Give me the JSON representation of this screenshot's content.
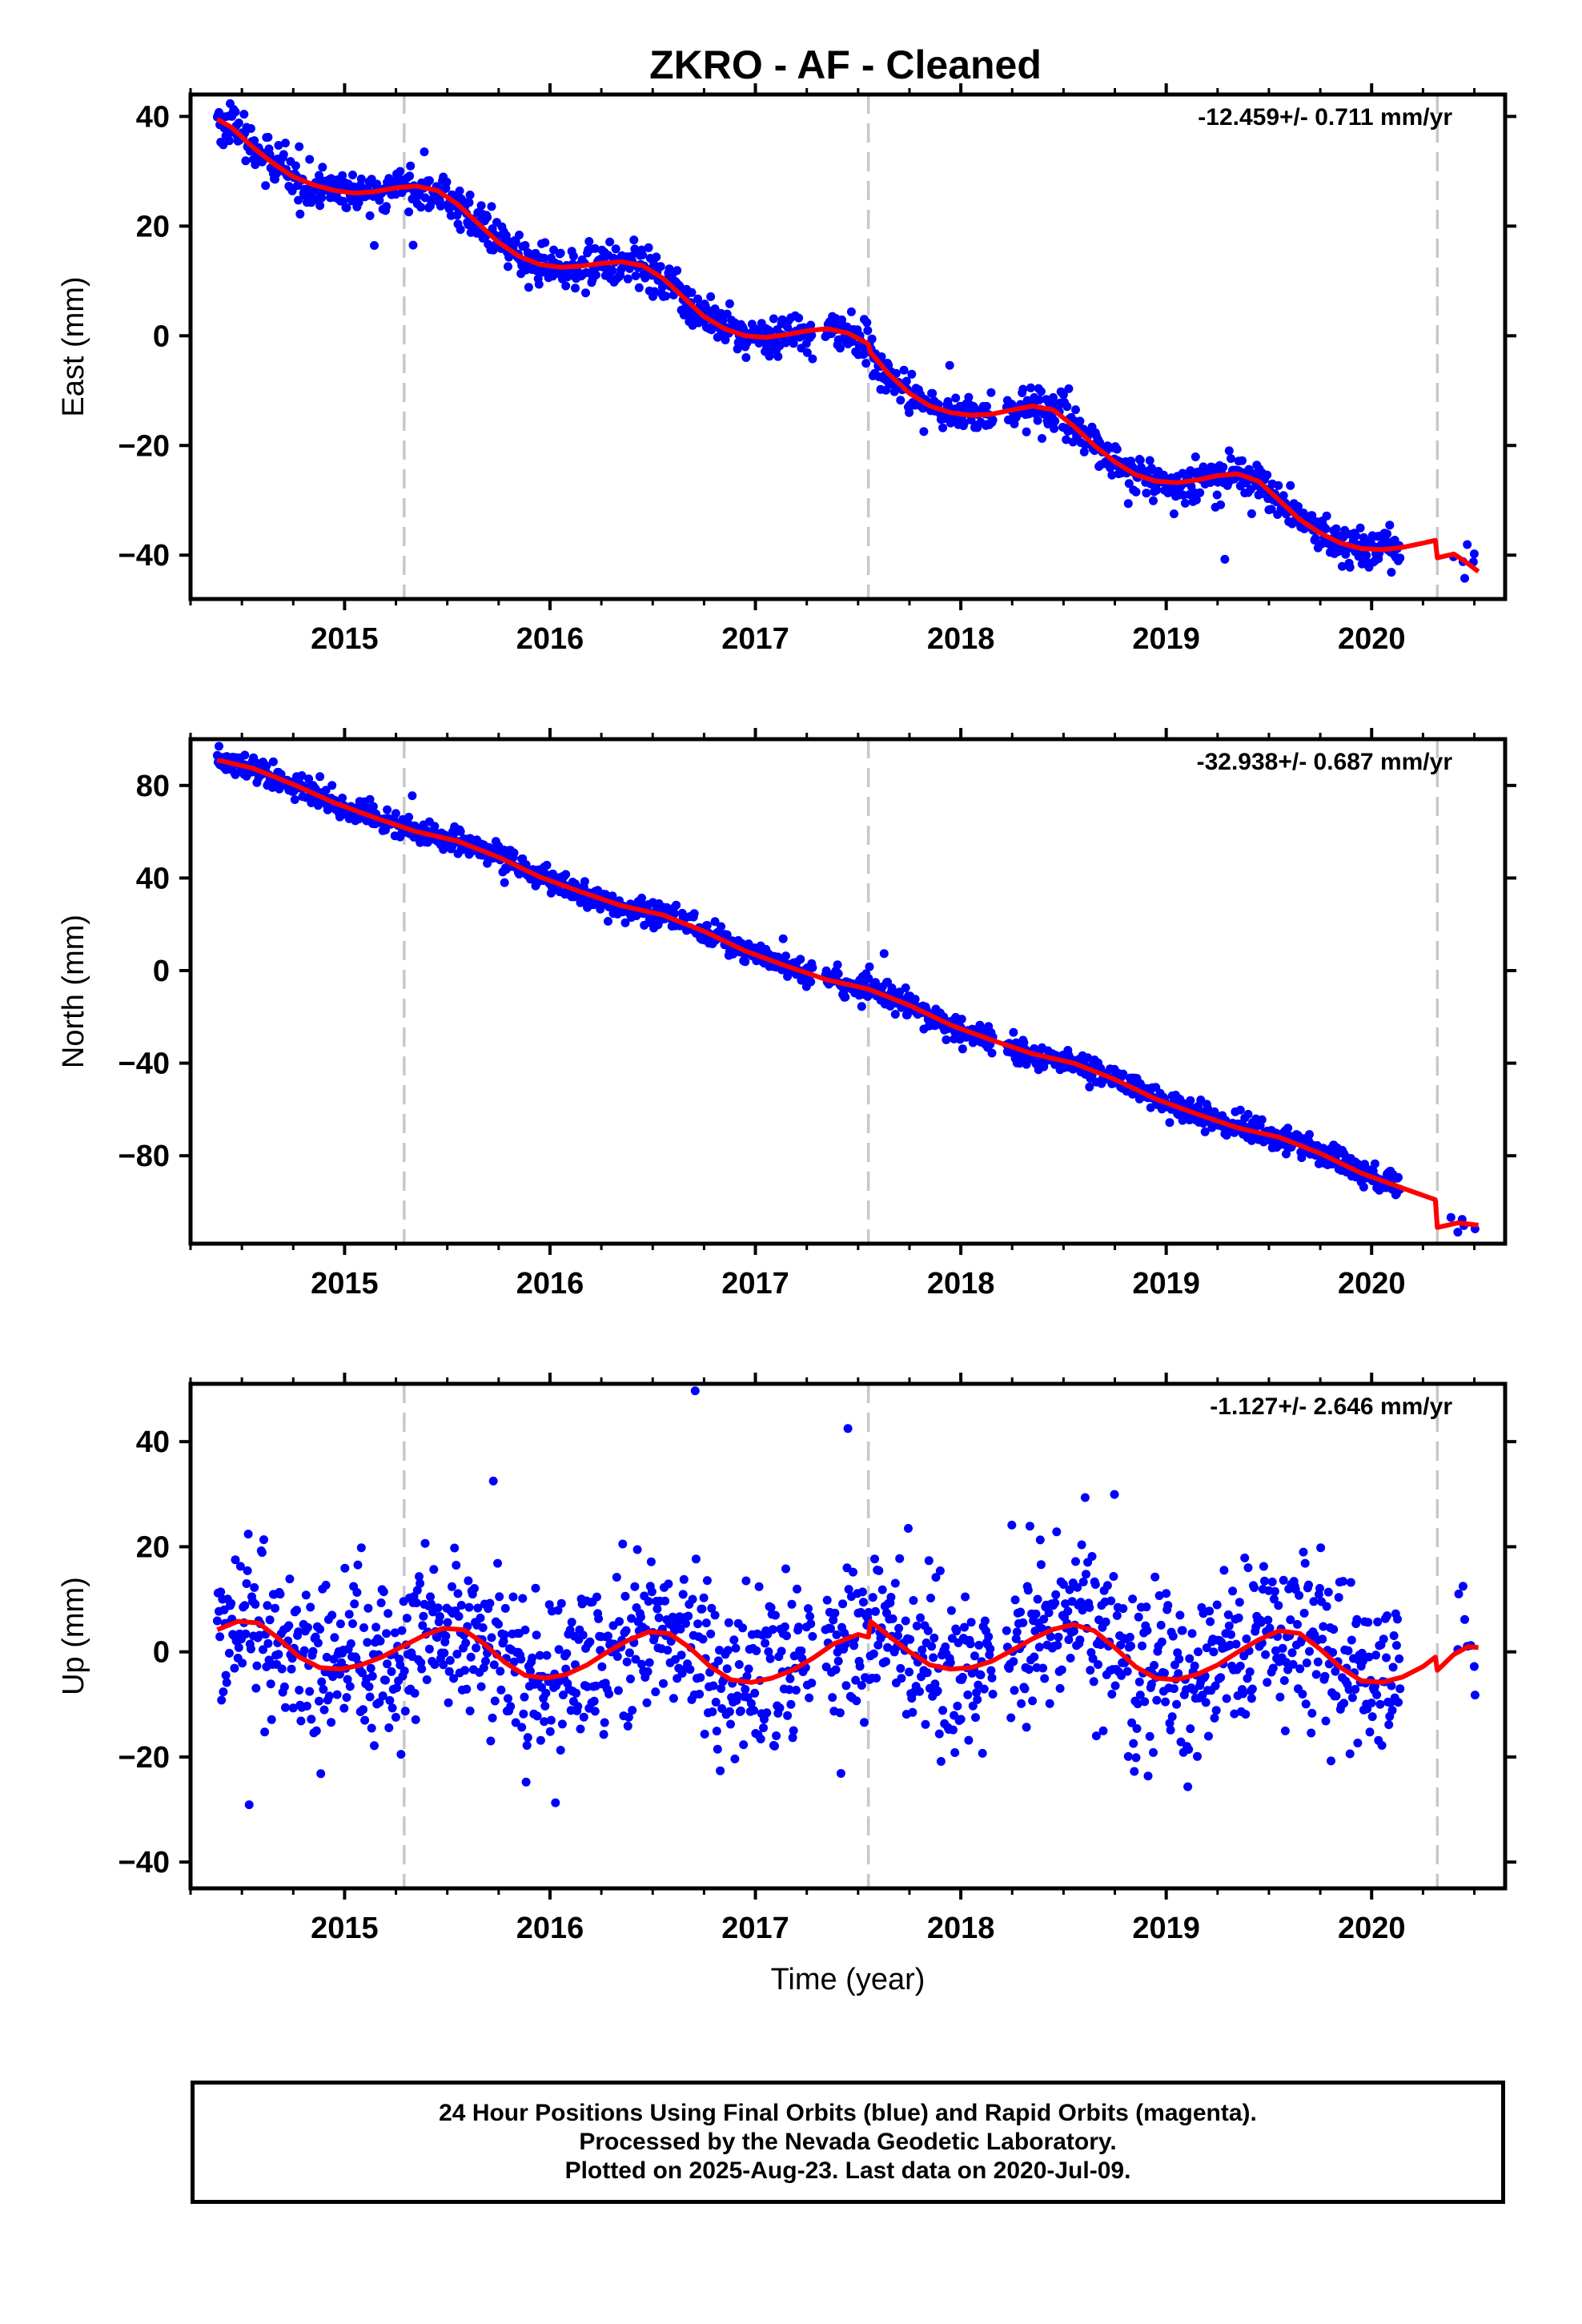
{
  "title": "ZKRO  - AF - Cleaned",
  "caption": {
    "line1": "24 Hour Positions Using Final Orbits (blue) and Rapid Orbits (magenta).",
    "line2": "Processed by the Nevada Geodetic Laboratory.",
    "line3": "Plotted on 2025-Aug-23. Last data on 2020-Jul-09."
  },
  "colors": {
    "points": "#0000ff",
    "model": "#ff0000",
    "equipment_change": "#c8c8c8"
  },
  "chart_data": [
    {
      "type": "scatter",
      "ylabel": "East (mm)",
      "xlabel": "",
      "rate_label": "-12.459+/- 0.711 mm/yr",
      "xlim": [
        2014.25,
        2020.65
      ],
      "ylim": [
        -48,
        44
      ],
      "xticks": [
        "2015",
        "2016",
        "2017",
        "2018",
        "2019",
        "2020"
      ],
      "yticks": [
        {
          "v": 40,
          "label": "40"
        },
        {
          "v": 20,
          "label": "20"
        },
        {
          "v": 0,
          "label": "0"
        },
        {
          "v": -20,
          "label": "−20"
        },
        {
          "v": -40,
          "label": "−40"
        }
      ],
      "equipment_changes": [
        2015.29,
        2017.55,
        2020.32
      ],
      "model_line": [
        [
          2014.38,
          39.5
        ],
        [
          2014.45,
          38.0
        ],
        [
          2014.55,
          34.5
        ],
        [
          2014.65,
          31.5
        ],
        [
          2014.75,
          29.0
        ],
        [
          2014.85,
          27.5
        ],
        [
          2014.95,
          26.5
        ],
        [
          2015.05,
          26.0
        ],
        [
          2015.15,
          26.3
        ],
        [
          2015.25,
          27.0
        ],
        [
          2015.35,
          27.3
        ],
        [
          2015.45,
          26.5
        ],
        [
          2015.55,
          24.0
        ],
        [
          2015.65,
          20.5
        ],
        [
          2015.75,
          17.0
        ],
        [
          2015.85,
          14.5
        ],
        [
          2015.95,
          13.0
        ],
        [
          2016.05,
          12.5
        ],
        [
          2016.15,
          12.7
        ],
        [
          2016.25,
          13.2
        ],
        [
          2016.35,
          13.5
        ],
        [
          2016.45,
          12.8
        ],
        [
          2016.55,
          10.5
        ],
        [
          2016.65,
          7.0
        ],
        [
          2016.75,
          3.5
        ],
        [
          2016.85,
          1.3
        ],
        [
          2016.95,
          0.0
        ],
        [
          2017.05,
          -0.3
        ],
        [
          2017.15,
          0.2
        ],
        [
          2017.25,
          0.9
        ],
        [
          2017.35,
          1.3
        ],
        [
          2017.45,
          0.5
        ],
        [
          2017.55,
          -1.5
        ],
        [
          2017.56,
          -3.0
        ],
        [
          2017.65,
          -7.0
        ],
        [
          2017.75,
          -10.5
        ],
        [
          2017.85,
          -12.8
        ],
        [
          2017.95,
          -14.0
        ],
        [
          2018.05,
          -14.5
        ],
        [
          2018.15,
          -14.3
        ],
        [
          2018.25,
          -13.5
        ],
        [
          2018.35,
          -12.8
        ],
        [
          2018.45,
          -13.5
        ],
        [
          2018.55,
          -16.5
        ],
        [
          2018.65,
          -20.0
        ],
        [
          2018.75,
          -23.0
        ],
        [
          2018.85,
          -25.3
        ],
        [
          2018.95,
          -26.5
        ],
        [
          2019.05,
          -26.8
        ],
        [
          2019.15,
          -26.3
        ],
        [
          2019.25,
          -25.5
        ],
        [
          2019.35,
          -25.2
        ],
        [
          2019.45,
          -26.5
        ],
        [
          2019.55,
          -30.0
        ],
        [
          2019.65,
          -33.5
        ],
        [
          2019.75,
          -36.0
        ],
        [
          2019.85,
          -37.8
        ],
        [
          2019.95,
          -38.8
        ],
        [
          2020.05,
          -39.0
        ],
        [
          2020.15,
          -38.6
        ],
        [
          2020.25,
          -37.8
        ],
        [
          2020.31,
          -37.3
        ],
        [
          2020.32,
          -40.5
        ],
        [
          2020.4,
          -39.8
        ],
        [
          2020.45,
          -41.0
        ],
        [
          2020.52,
          -43.0
        ]
      ]
    },
    {
      "type": "scatter",
      "ylabel": "North (mm)",
      "xlabel": "",
      "rate_label": "-32.938+/- 0.687 mm/yr",
      "xlim": [
        2014.25,
        2020.65
      ],
      "ylim": [
        -118,
        100
      ],
      "xticks": [
        "2015",
        "2016",
        "2017",
        "2018",
        "2019",
        "2020"
      ],
      "yticks": [
        {
          "v": 80,
          "label": "80"
        },
        {
          "v": 40,
          "label": "40"
        },
        {
          "v": 0,
          "label": "0"
        },
        {
          "v": -40,
          "label": "−40"
        },
        {
          "v": -80,
          "label": "−80"
        }
      ],
      "equipment_changes": [
        2015.29,
        2017.55,
        2020.32
      ],
      "model_line": [
        [
          2014.38,
          91.0
        ],
        [
          2014.55,
          87.5
        ],
        [
          2014.75,
          80.5
        ],
        [
          2014.95,
          72.5
        ],
        [
          2015.15,
          66.0
        ],
        [
          2015.35,
          60.0
        ],
        [
          2015.55,
          56.0
        ],
        [
          2015.75,
          49.0
        ],
        [
          2015.95,
          40.5
        ],
        [
          2016.15,
          34.0
        ],
        [
          2016.35,
          28.0
        ],
        [
          2016.55,
          24.0
        ],
        [
          2016.75,
          17.0
        ],
        [
          2016.95,
          8.5
        ],
        [
          2017.15,
          2.0
        ],
        [
          2017.35,
          -4.0
        ],
        [
          2017.55,
          -8.0
        ],
        [
          2017.75,
          -15.0
        ],
        [
          2017.95,
          -23.5
        ],
        [
          2018.15,
          -30.0
        ],
        [
          2018.35,
          -36.0
        ],
        [
          2018.55,
          -40.0
        ],
        [
          2018.75,
          -47.0
        ],
        [
          2018.95,
          -55.5
        ],
        [
          2019.15,
          -62.0
        ],
        [
          2019.35,
          -68.0
        ],
        [
          2019.55,
          -72.0
        ],
        [
          2019.75,
          -79.0
        ],
        [
          2019.95,
          -87.5
        ],
        [
          2020.15,
          -94.0
        ],
        [
          2020.31,
          -99.0
        ],
        [
          2020.32,
          -111.0
        ],
        [
          2020.42,
          -109.0
        ],
        [
          2020.52,
          -110.0
        ]
      ]
    },
    {
      "type": "scatter",
      "ylabel": "Up (mm)",
      "xlabel": "Time (year)",
      "rate_label": "-1.127+/- 2.646 mm/yr",
      "xlim": [
        2014.25,
        2020.65
      ],
      "ylim": [
        -45,
        51
      ],
      "xticks": [
        "2015",
        "2016",
        "2017",
        "2018",
        "2019",
        "2020"
      ],
      "yticks": [
        {
          "v": 40,
          "label": "40"
        },
        {
          "v": 20,
          "label": "20"
        },
        {
          "v": 0,
          "label": "0"
        },
        {
          "v": -20,
          "label": "−20"
        },
        {
          "v": -40,
          "label": "−40"
        }
      ],
      "equipment_changes": [
        2015.29,
        2017.55,
        2020.32
      ],
      "model_line": [
        [
          2014.38,
          4.2
        ],
        [
          2014.48,
          5.8
        ],
        [
          2014.58,
          5.5
        ],
        [
          2014.68,
          2.5
        ],
        [
          2014.78,
          -1.0
        ],
        [
          2014.88,
          -3.0
        ],
        [
          2014.98,
          -3.3
        ],
        [
          2015.08,
          -2.5
        ],
        [
          2015.18,
          -1.0
        ],
        [
          2015.28,
          1.0
        ],
        [
          2015.38,
          3.0
        ],
        [
          2015.48,
          4.5
        ],
        [
          2015.58,
          4.2
        ],
        [
          2015.68,
          1.5
        ],
        [
          2015.78,
          -2.0
        ],
        [
          2015.88,
          -4.5
        ],
        [
          2015.98,
          -5.0
        ],
        [
          2016.08,
          -4.3
        ],
        [
          2016.18,
          -2.5
        ],
        [
          2016.28,
          0.0
        ],
        [
          2016.38,
          2.2
        ],
        [
          2016.48,
          3.8
        ],
        [
          2016.58,
          3.5
        ],
        [
          2016.68,
          0.8
        ],
        [
          2016.78,
          -2.8
        ],
        [
          2016.88,
          -5.3
        ],
        [
          2016.98,
          -5.8
        ],
        [
          2017.08,
          -5.0
        ],
        [
          2017.18,
          -3.5
        ],
        [
          2017.28,
          -1.2
        ],
        [
          2017.38,
          1.5
        ],
        [
          2017.5,
          3.3
        ],
        [
          2017.55,
          2.8
        ],
        [
          2017.56,
          5.8
        ],
        [
          2017.65,
          3.0
        ],
        [
          2017.75,
          0.0
        ],
        [
          2017.85,
          -2.5
        ],
        [
          2017.95,
          -3.3
        ],
        [
          2018.05,
          -3.0
        ],
        [
          2018.15,
          -1.8
        ],
        [
          2018.25,
          0.3
        ],
        [
          2018.35,
          2.5
        ],
        [
          2018.45,
          4.3
        ],
        [
          2018.55,
          5.2
        ],
        [
          2018.65,
          4.0
        ],
        [
          2018.75,
          0.8
        ],
        [
          2018.85,
          -2.8
        ],
        [
          2018.95,
          -5.0
        ],
        [
          2019.05,
          -5.3
        ],
        [
          2019.15,
          -4.3
        ],
        [
          2019.25,
          -2.5
        ],
        [
          2019.35,
          0.0
        ],
        [
          2019.45,
          2.3
        ],
        [
          2019.55,
          4.0
        ],
        [
          2019.65,
          3.5
        ],
        [
          2019.75,
          0.5
        ],
        [
          2019.85,
          -3.0
        ],
        [
          2019.95,
          -5.5
        ],
        [
          2020.05,
          -5.8
        ],
        [
          2020.15,
          -4.8
        ],
        [
          2020.25,
          -2.8
        ],
        [
          2020.31,
          -1.0
        ],
        [
          2020.32,
          -3.5
        ],
        [
          2020.4,
          -0.5
        ],
        [
          2020.47,
          1.0
        ],
        [
          2020.52,
          0.8
        ]
      ]
    }
  ]
}
